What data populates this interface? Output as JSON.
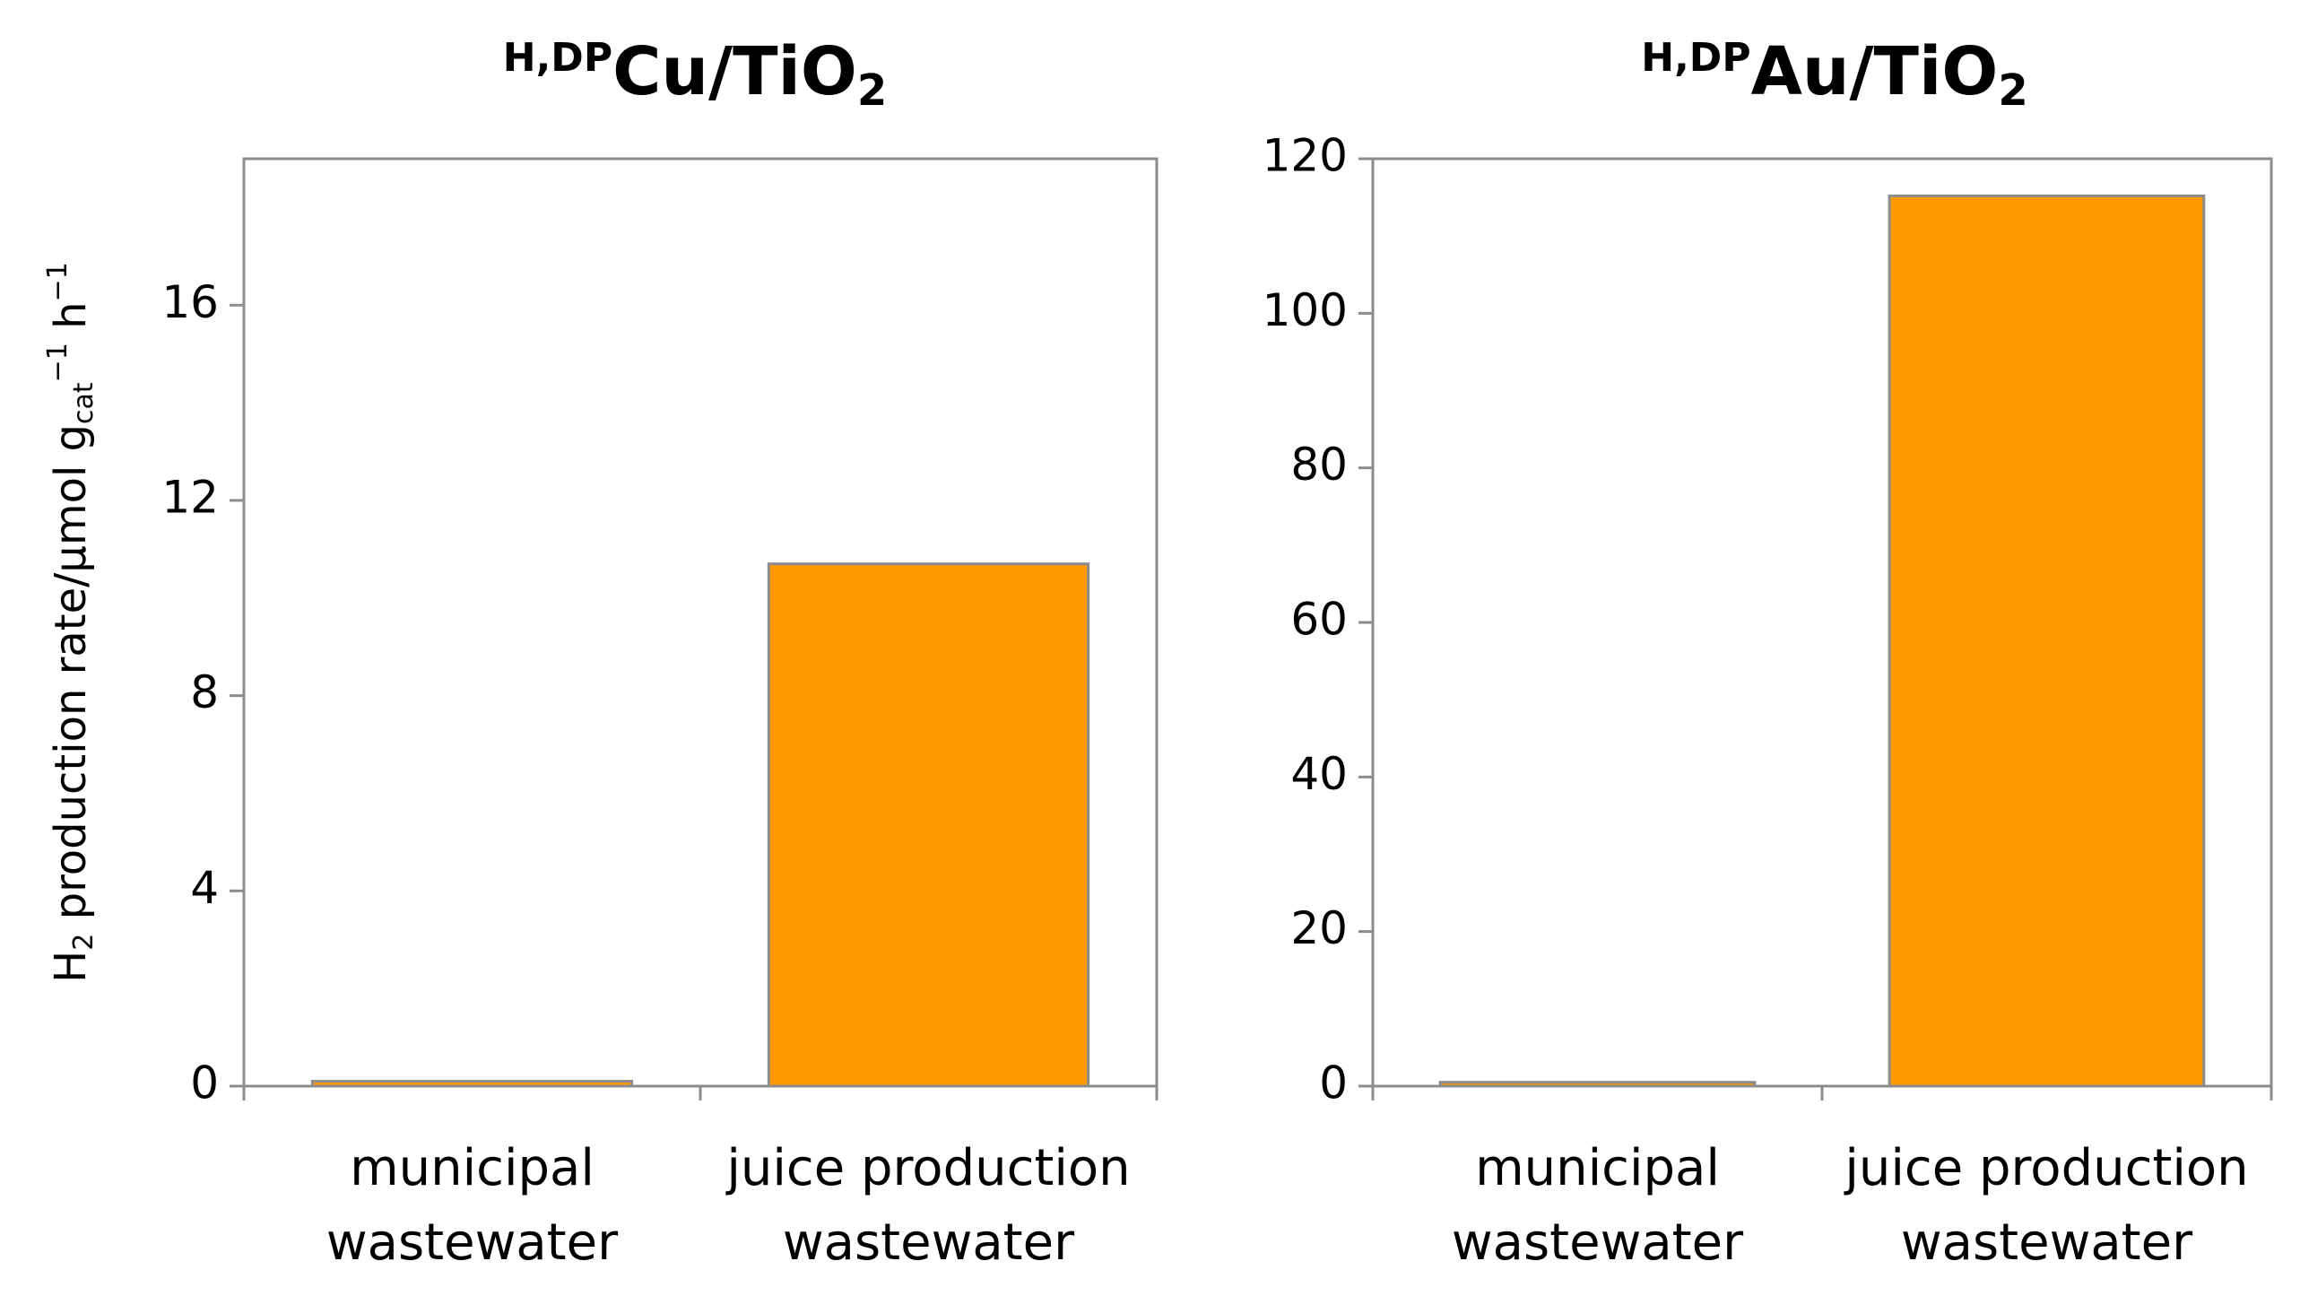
{
  "chart_data": [
    {
      "type": "bar",
      "title": {
        "sup": "H,DP",
        "main": "Cu/TiO",
        "sub": "2"
      },
      "y_label": {
        "h": "H",
        "h_sub": "2",
        "text": " production rate/µmol g",
        "g_sub": "cat",
        "g_sup": "−1",
        "h2": " h",
        "h2_sup": "−1"
      },
      "categories": [
        [
          "municipal",
          "wastewater"
        ],
        [
          "juice production",
          "wastewater"
        ]
      ],
      "values": [
        0.1,
        10.7
      ],
      "color": "#ff9900",
      "ylim": [
        0,
        19
      ],
      "yticks": [
        0,
        4,
        8,
        12,
        16
      ]
    },
    {
      "type": "bar",
      "title": {
        "sup": "H,DP",
        "main": "Au/TiO",
        "sub": "2"
      },
      "categories": [
        [
          "municipal",
          "wastewater"
        ],
        [
          "juice production",
          "wastewater"
        ]
      ],
      "values": [
        0.5,
        115.2
      ],
      "color": "#ff9900",
      "ylim": [
        0,
        120
      ],
      "yticks": [
        0,
        20,
        40,
        60,
        80,
        100,
        120
      ]
    }
  ]
}
